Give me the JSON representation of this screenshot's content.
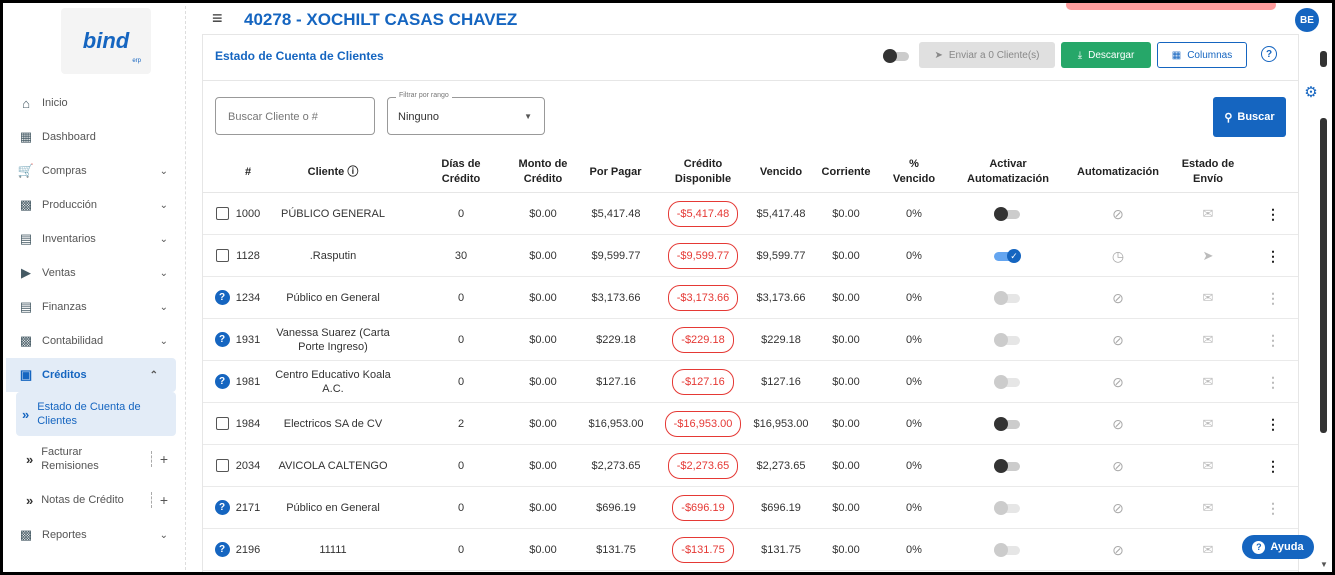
{
  "app": {
    "logo_text": "bind",
    "logo_sub": "erp",
    "page_heading": "40278 - XOCHILT CASAS CHAVEZ",
    "user_initials": "BE"
  },
  "sidebar": {
    "items": [
      {
        "label": "Inicio",
        "icon": "home-icon",
        "chevron": false
      },
      {
        "label": "Dashboard",
        "icon": "dashboard-icon",
        "chevron": false
      },
      {
        "label": "Compras",
        "icon": "cart-icon",
        "chevron": true
      },
      {
        "label": "Producción",
        "icon": "factory-icon",
        "chevron": true
      },
      {
        "label": "Inventarios",
        "icon": "inventory-icon",
        "chevron": true
      },
      {
        "label": "Ventas",
        "icon": "tag-icon",
        "chevron": true
      },
      {
        "label": "Finanzas",
        "icon": "bank-icon",
        "chevron": true
      },
      {
        "label": "Contabilidad",
        "icon": "ledger-icon",
        "chevron": true
      }
    ],
    "active": {
      "label": "Créditos",
      "icon": "credit-card-icon"
    },
    "sub_active": "Estado de Cuenta de Clientes",
    "sub_items": [
      {
        "label": "Facturar Remisiones"
      },
      {
        "label": "Notas de Crédito"
      }
    ],
    "last": {
      "label": "Reportes",
      "icon": "reports-icon"
    }
  },
  "card": {
    "title": "Estado de Cuenta de Clientes",
    "send_button": "Enviar a 0 Cliente(s)",
    "download_button": "Descargar",
    "columns_button": "Columnas",
    "search_placeholder": "Buscar Cliente o #",
    "range_label": "Filtrar por rango",
    "range_value": "Ninguno",
    "search_button": "Buscar"
  },
  "table": {
    "headers": [
      "#",
      "Cliente ⓘ",
      "Días de Crédito",
      "Monto de Crédito",
      "Por Pagar",
      "Crédito Disponible",
      "Vencido",
      "Corriente",
      "% Vencido",
      "Activar Automatización",
      "Automatización",
      "Estado de Envío"
    ],
    "rows": [
      {
        "lead": "check",
        "num": "1000",
        "client": "PÚBLICO GENERAL",
        "dias": "0",
        "monto": "$0.00",
        "por_pagar": "$5,417.48",
        "disponible": "-$5,417.48",
        "vencido": "$5,417.48",
        "corriente": "$0.00",
        "pct": "0%",
        "toggle": "off",
        "auto_icon": "timer-off-icon",
        "envio_icon": "mail-icon",
        "active": true
      },
      {
        "lead": "check",
        "num": "1128",
        "client": ".Rasputin",
        "dias": "30",
        "monto": "$0.00",
        "por_pagar": "$9,599.77",
        "disponible": "-$9,599.77",
        "vencido": "$9,599.77",
        "corriente": "$0.00",
        "pct": "0%",
        "toggle": "on",
        "auto_icon": "clock-icon",
        "envio_icon": "schedule-send-icon",
        "active": true
      },
      {
        "lead": "help",
        "num": "1234",
        "client": "Público en General",
        "dias": "0",
        "monto": "$0.00",
        "por_pagar": "$3,173.66",
        "disponible": "-$3,173.66",
        "vencido": "$3,173.66",
        "corriente": "$0.00",
        "pct": "0%",
        "toggle": "dim",
        "auto_icon": "timer-off-icon",
        "envio_icon": "mail-icon",
        "active": false
      },
      {
        "lead": "help",
        "num": "1931",
        "client": "Vanessa Suarez (Carta Porte Ingreso)",
        "dias": "0",
        "monto": "$0.00",
        "por_pagar": "$229.18",
        "disponible": "-$229.18",
        "vencido": "$229.18",
        "corriente": "$0.00",
        "pct": "0%",
        "toggle": "dim",
        "auto_icon": "timer-off-icon",
        "envio_icon": "mail-icon",
        "active": false
      },
      {
        "lead": "help",
        "num": "1981",
        "client": "Centro Educativo Koala A.C.",
        "dias": "0",
        "monto": "$0.00",
        "por_pagar": "$127.16",
        "disponible": "-$127.16",
        "vencido": "$127.16",
        "corriente": "$0.00",
        "pct": "0%",
        "toggle": "dim",
        "auto_icon": "timer-off-icon",
        "envio_icon": "mail-icon",
        "active": false
      },
      {
        "lead": "check",
        "num": "1984",
        "client": "Electricos SA de CV",
        "dias": "2",
        "monto": "$0.00",
        "por_pagar": "$16,953.00",
        "disponible": "-$16,953.00",
        "vencido": "$16,953.00",
        "corriente": "$0.00",
        "pct": "0%",
        "toggle": "off",
        "auto_icon": "timer-off-icon",
        "envio_icon": "mail-icon",
        "active": true
      },
      {
        "lead": "check",
        "num": "2034",
        "client": "AVICOLA CALTENGO",
        "dias": "0",
        "monto": "$0.00",
        "por_pagar": "$2,273.65",
        "disponible": "-$2,273.65",
        "vencido": "$2,273.65",
        "corriente": "$0.00",
        "pct": "0%",
        "toggle": "off",
        "auto_icon": "timer-off-icon",
        "envio_icon": "mail-icon",
        "active": true
      },
      {
        "lead": "help",
        "num": "2171",
        "client": "Público en General",
        "dias": "0",
        "monto": "$0.00",
        "por_pagar": "$696.19",
        "disponible": "-$696.19",
        "vencido": "$696.19",
        "corriente": "$0.00",
        "pct": "0%",
        "toggle": "dim",
        "auto_icon": "timer-off-icon",
        "envio_icon": "mail-icon",
        "active": false
      },
      {
        "lead": "help",
        "num": "2196",
        "client": "11111",
        "dias": "0",
        "monto": "$0.00",
        "por_pagar": "$131.75",
        "disponible": "-$131.75",
        "vencido": "$131.75",
        "corriente": "$0.00",
        "pct": "0%",
        "toggle": "dim",
        "auto_icon": "timer-off-icon",
        "envio_icon": "mail-icon",
        "active": false
      }
    ]
  },
  "help_widget": {
    "label": "Ayuda"
  },
  "colors": {
    "accent": "#1565c0",
    "success": "#26a769",
    "danger": "#e53935"
  }
}
